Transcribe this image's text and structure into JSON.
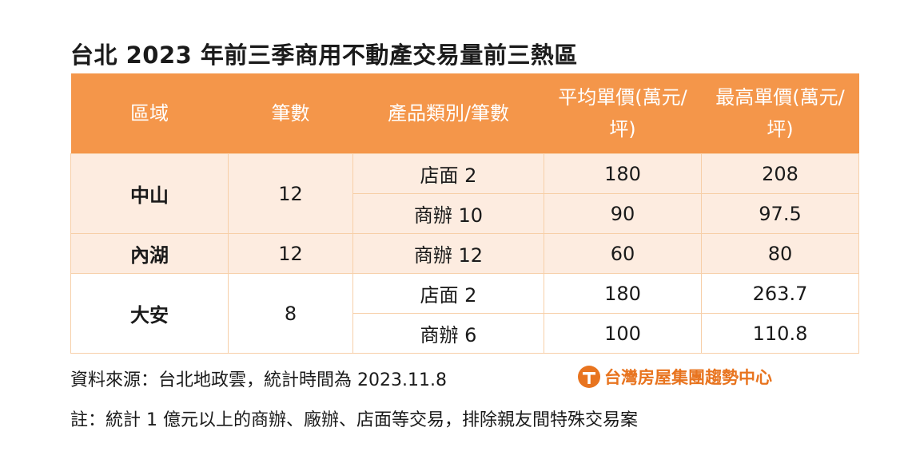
{
  "title": "台北 2023 年前三季商用不動產交易量前三熱區",
  "table": {
    "headers": [
      "區域",
      "筆數",
      "產品類別/筆數",
      "平均單價(萬元/坪)",
      "最高單價(萬元/坪)"
    ],
    "groups": [
      {
        "district": "中山",
        "count": "12",
        "rows": [
          {
            "product": "店面 2",
            "avg": "180",
            "max": "208"
          },
          {
            "product": "商辦 10",
            "avg": "90",
            "max": "97.5"
          }
        ]
      },
      {
        "district": "內湖",
        "count": "12",
        "rows": [
          {
            "product": "商辦 12",
            "avg": "60",
            "max": "80"
          }
        ]
      },
      {
        "district": "大安",
        "count": "8",
        "rows": [
          {
            "product": "店面 2",
            "avg": "180",
            "max": "263.7"
          },
          {
            "product": "商辦 6",
            "avg": "100",
            "max": "110.8"
          }
        ]
      }
    ]
  },
  "source": "資料來源：台北地政雲，統計時間為 2023.11.8",
  "logo": {
    "text": "台灣房屋集團趨勢中心",
    "color": "#e8741f"
  },
  "note": "註：統計 1 億元以上的商辦、廠辦、店面等交易，排除親友間特殊交易案",
  "colors": {
    "header": "#f4964a",
    "shaded_row": "#fdece0",
    "border": "#f7cfa8"
  }
}
